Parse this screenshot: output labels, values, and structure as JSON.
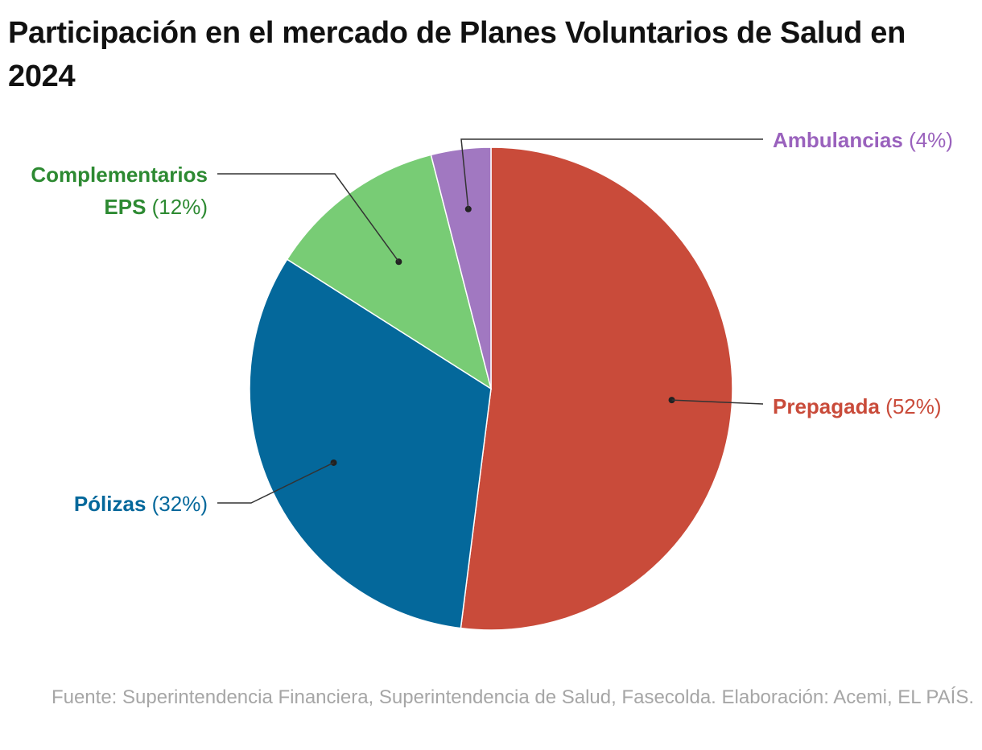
{
  "title": "Participación en el mercado de Planes Voluntarios de Salud en 2024",
  "source": "Fuente: Superintendencia Financiera, Superintendencia de Salud, Fasecolda. Elaboración: Acemi, EL PAÍS.",
  "chart_data": {
    "type": "pie",
    "title": "Participación en el mercado de Planes Voluntarios de Salud en 2024",
    "unit": "%",
    "slices": [
      {
        "name": "Prepagada",
        "label": "Prepagada",
        "pct_label": "(52%)",
        "value": 52,
        "color": "#c94b3a"
      },
      {
        "name": "Pólizas",
        "label": "Pólizas",
        "pct_label": "(32%)",
        "value": 32,
        "color": "#04689b"
      },
      {
        "name": "Complementarios EPS",
        "label": "Complementarios EPS",
        "pct_label": "(12%)",
        "value": 12,
        "color": "#78cc75",
        "label_color": "#2d8a32"
      },
      {
        "name": "Ambulancias",
        "label": "Ambulancias",
        "pct_label": "(4%)",
        "value": 4,
        "color": "#a178c1",
        "label_color": "#9a62bd"
      }
    ],
    "legend": "none",
    "labels": "outside-with-leaders"
  }
}
